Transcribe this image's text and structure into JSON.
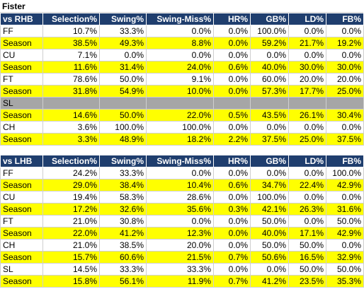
{
  "title": "Fister",
  "tables": [
    {
      "headers": [
        "vs RHB",
        "Selection%",
        "Swing%",
        "Swing-Miss%",
        "HR%",
        "GB%",
        "LD%",
        "FB%"
      ],
      "rows": [
        {
          "type": "pitch",
          "cells": [
            "FF",
            "10.7%",
            "33.3%",
            "0.0%",
            "0.0%",
            "100.0%",
            "0.0%",
            "0.0%"
          ]
        },
        {
          "type": "season",
          "cells": [
            "Season",
            "38.5%",
            "49.3%",
            "8.8%",
            "0.0%",
            "59.2%",
            "21.7%",
            "19.2%"
          ]
        },
        {
          "type": "pitch",
          "cells": [
            "CU",
            "7.1%",
            "0.0%",
            "0.0%",
            "0.0%",
            "0.0%",
            "0.0%",
            "0.0%"
          ]
        },
        {
          "type": "season",
          "cells": [
            "Season",
            "11.6%",
            "31.4%",
            "24.0%",
            "0.6%",
            "40.0%",
            "30.0%",
            "30.0%"
          ]
        },
        {
          "type": "pitch",
          "cells": [
            "FT",
            "78.6%",
            "50.0%",
            "9.1%",
            "0.0%",
            "60.0%",
            "20.0%",
            "20.0%"
          ]
        },
        {
          "type": "season",
          "cells": [
            "Season",
            "31.8%",
            "54.9%",
            "10.0%",
            "0.0%",
            "57.3%",
            "17.7%",
            "25.0%"
          ]
        },
        {
          "type": "blank",
          "cells": [
            "SL",
            "",
            "",
            "",
            "",
            "",
            "",
            ""
          ]
        },
        {
          "type": "season",
          "cells": [
            "Season",
            "14.6%",
            "50.0%",
            "22.0%",
            "0.5%",
            "43.5%",
            "26.1%",
            "30.4%"
          ]
        },
        {
          "type": "pitch",
          "cells": [
            "CH",
            "3.6%",
            "100.0%",
            "100.0%",
            "0.0%",
            "0.0%",
            "0.0%",
            "0.0%"
          ]
        },
        {
          "type": "season",
          "cells": [
            "Season",
            "3.3%",
            "48.9%",
            "18.2%",
            "2.2%",
            "37.5%",
            "25.0%",
            "37.5%"
          ]
        }
      ]
    },
    {
      "headers": [
        "vs LHB",
        "Selection%",
        "Swing%",
        "Swing-Miss%",
        "HR%",
        "GB%",
        "LD%",
        "FB%"
      ],
      "rows": [
        {
          "type": "pitch",
          "cells": [
            "FF",
            "24.2%",
            "33.3%",
            "0.0%",
            "0.0%",
            "0.0%",
            "0.0%",
            "100.0%"
          ]
        },
        {
          "type": "season",
          "cells": [
            "Season",
            "29.0%",
            "38.4%",
            "10.4%",
            "0.6%",
            "34.7%",
            "22.4%",
            "42.9%"
          ]
        },
        {
          "type": "pitch",
          "cells": [
            "CU",
            "19.4%",
            "58.3%",
            "28.6%",
            "0.0%",
            "100.0%",
            "0.0%",
            "0.0%"
          ]
        },
        {
          "type": "season",
          "cells": [
            "Season",
            "17.2%",
            "32.6%",
            "35.6%",
            "0.3%",
            "42.1%",
            "26.3%",
            "31.6%"
          ]
        },
        {
          "type": "pitch",
          "cells": [
            "FT",
            "21.0%",
            "30.8%",
            "0.0%",
            "0.0%",
            "50.0%",
            "0.0%",
            "50.0%"
          ]
        },
        {
          "type": "season",
          "cells": [
            "Season",
            "22.0%",
            "41.2%",
            "12.3%",
            "0.0%",
            "40.0%",
            "17.1%",
            "42.9%"
          ]
        },
        {
          "type": "pitch",
          "cells": [
            "CH",
            "21.0%",
            "38.5%",
            "20.0%",
            "0.0%",
            "50.0%",
            "50.0%",
            "0.0%"
          ]
        },
        {
          "type": "season",
          "cells": [
            "Season",
            "15.7%",
            "60.6%",
            "21.5%",
            "0.7%",
            "50.6%",
            "16.5%",
            "32.9%"
          ]
        },
        {
          "type": "pitch",
          "cells": [
            "SL",
            "14.5%",
            "33.3%",
            "33.3%",
            "0.0%",
            "0.0%",
            "50.0%",
            "50.0%"
          ]
        },
        {
          "type": "season",
          "cells": [
            "Season",
            "15.8%",
            "56.1%",
            "11.9%",
            "0.7%",
            "41.2%",
            "23.5%",
            "35.3%"
          ]
        }
      ]
    }
  ]
}
